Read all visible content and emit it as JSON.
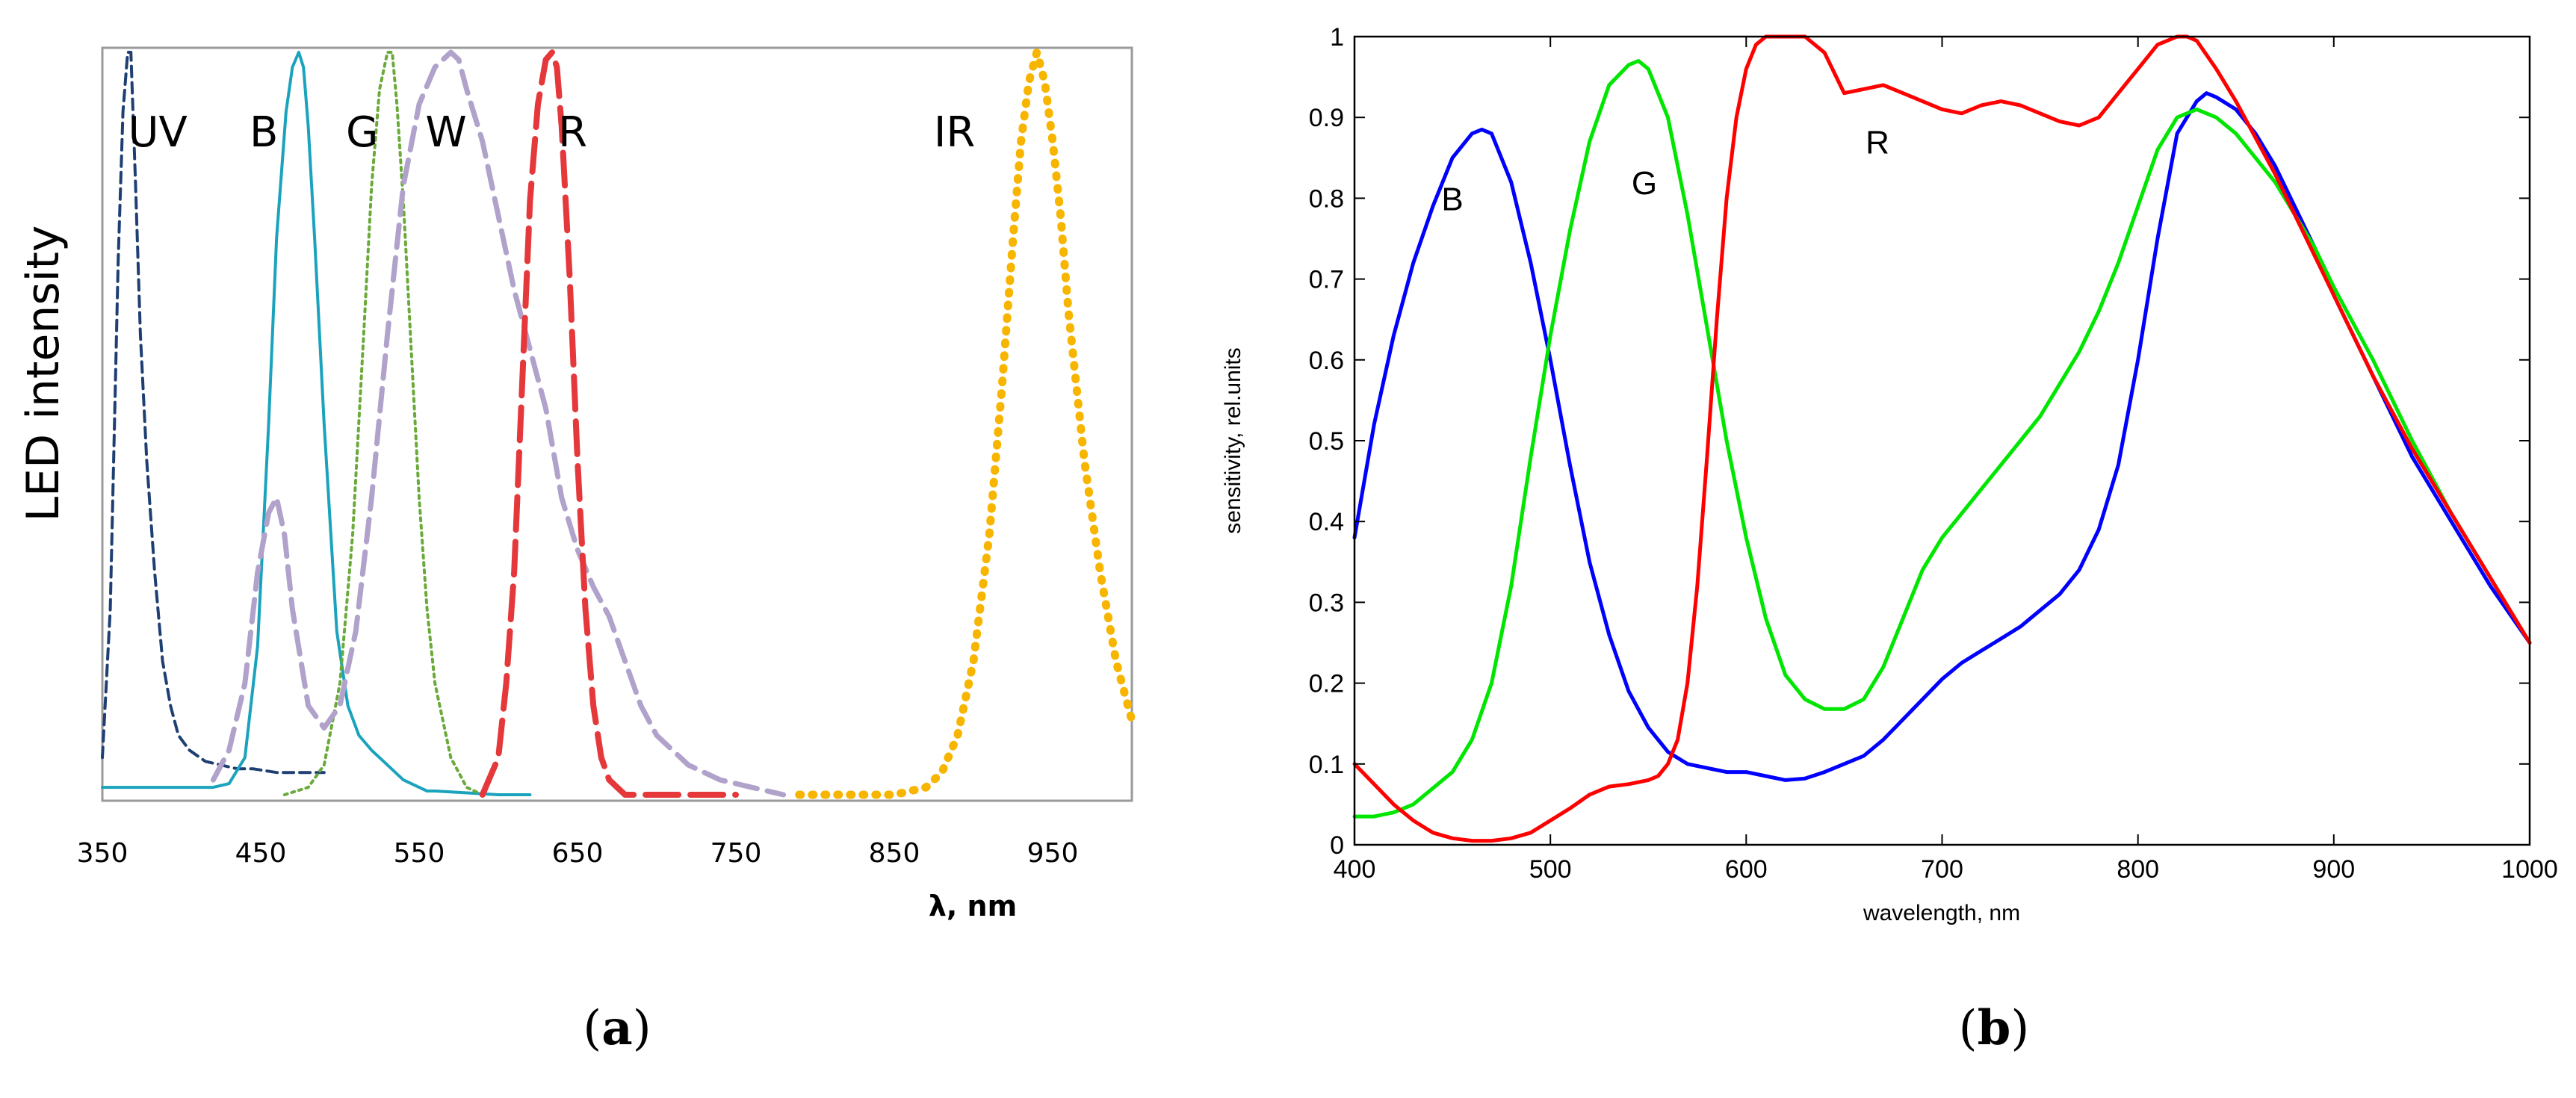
{
  "chart_data": [
    {
      "type": "line",
      "panel_label": "(a)",
      "caption_open": "(",
      "caption_letter": "a",
      "caption_close": ")",
      "ylabel": "LED intensity",
      "xlabel": "λ, nm",
      "xlim": [
        350,
        1000
      ],
      "ylim": [
        0,
        1
      ],
      "grid": false,
      "xticks": [
        350,
        450,
        550,
        650,
        750,
        850,
        950
      ],
      "band_labels": [
        {
          "text": "UV",
          "x": 385
        },
        {
          "text": "B",
          "x": 452
        },
        {
          "text": "G",
          "x": 514
        },
        {
          "text": "W",
          "x": 567
        },
        {
          "text": "R",
          "x": 647
        },
        {
          "text": "IR",
          "x": 888
        }
      ],
      "series": [
        {
          "name": "UV",
          "color": "#1f3f73",
          "dash": "14 8",
          "width": 4,
          "x": [
            350,
            355,
            360,
            363,
            366,
            368,
            371,
            374,
            378,
            383,
            388,
            393,
            398,
            405,
            415,
            425,
            435,
            445,
            460,
            470,
            480,
            490
          ],
          "y": [
            0.05,
            0.25,
            0.72,
            0.92,
            1.0,
            1.0,
            0.82,
            0.62,
            0.45,
            0.3,
            0.18,
            0.12,
            0.08,
            0.06,
            0.045,
            0.04,
            0.035,
            0.035,
            0.03,
            0.03,
            0.03,
            0.03
          ]
        },
        {
          "name": "B",
          "color": "#1ba3bd",
          "dash": "",
          "width": 4,
          "x": [
            350,
            380,
            400,
            420,
            430,
            440,
            448,
            455,
            460,
            466,
            470,
            474,
            477,
            480,
            484,
            490,
            498,
            505,
            512,
            520,
            530,
            540,
            550,
            555,
            560,
            600,
            620
          ],
          "y": [
            0.01,
            0.01,
            0.01,
            0.01,
            0.015,
            0.05,
            0.2,
            0.5,
            0.75,
            0.92,
            0.98,
            1.0,
            0.98,
            0.9,
            0.75,
            0.5,
            0.22,
            0.12,
            0.08,
            0.06,
            0.04,
            0.02,
            0.01,
            0.005,
            0.005,
            0.0,
            0.0
          ]
        },
        {
          "name": "G",
          "color": "#6aaa3a",
          "dash": "4 6",
          "width": 4,
          "x": [
            465,
            480,
            490,
            500,
            508,
            515,
            520,
            525,
            530,
            533,
            536,
            540,
            545,
            550,
            555,
            560,
            570,
            580,
            590
          ],
          "y": [
            0.0,
            0.01,
            0.04,
            0.15,
            0.35,
            0.62,
            0.82,
            0.95,
            1.0,
            1.0,
            0.93,
            0.8,
            0.6,
            0.4,
            0.25,
            0.15,
            0.05,
            0.01,
            0.0
          ]
        },
        {
          "name": "W",
          "color": "#b0a2ca",
          "dash": "30 14",
          "width": 7,
          "x": [
            420,
            430,
            440,
            448,
            455,
            460,
            465,
            470,
            480,
            490,
            500,
            510,
            520,
            530,
            540,
            550,
            560,
            570,
            575,
            580,
            590,
            600,
            610,
            620,
            630,
            640,
            650,
            660,
            670,
            680,
            690,
            700,
            720,
            740,
            760,
            780
          ],
          "y": [
            0.02,
            0.06,
            0.15,
            0.3,
            0.38,
            0.4,
            0.35,
            0.25,
            0.12,
            0.09,
            0.12,
            0.22,
            0.4,
            0.62,
            0.82,
            0.93,
            0.98,
            1.0,
            0.99,
            0.95,
            0.88,
            0.78,
            0.68,
            0.6,
            0.52,
            0.4,
            0.33,
            0.28,
            0.24,
            0.18,
            0.12,
            0.08,
            0.04,
            0.02,
            0.01,
            0.0
          ]
        },
        {
          "name": "R",
          "color": "#e5383b",
          "dash": "44 16",
          "width": 8,
          "x": [
            590,
            600,
            605,
            610,
            615,
            620,
            625,
            630,
            634,
            637,
            640,
            645,
            650,
            655,
            660,
            665,
            670,
            680,
            700,
            750
          ],
          "y": [
            0.0,
            0.05,
            0.15,
            0.3,
            0.55,
            0.8,
            0.93,
            0.99,
            1.0,
            0.98,
            0.9,
            0.7,
            0.45,
            0.25,
            0.12,
            0.05,
            0.02,
            0.0,
            0.0,
            0.0
          ]
        },
        {
          "name": "IR",
          "color": "#f7b500",
          "dash": "2 15",
          "width": 11,
          "x": [
            790,
            820,
            850,
            870,
            880,
            890,
            900,
            910,
            918,
            925,
            930,
            935,
            940,
            945,
            950,
            955,
            960,
            970,
            980,
            990,
            1000
          ],
          "y": [
            0.0,
            0.0,
            0.0,
            0.01,
            0.03,
            0.08,
            0.18,
            0.35,
            0.55,
            0.75,
            0.88,
            0.96,
            1.0,
            0.96,
            0.88,
            0.78,
            0.65,
            0.45,
            0.3,
            0.18,
            0.1
          ]
        }
      ]
    },
    {
      "type": "line",
      "panel_label": "(b)",
      "caption_open": "(",
      "caption_letter": "b",
      "caption_close": ")",
      "xlabel": "wavelength, nm",
      "ylabel": "sensitivity, rel.units",
      "xlim": [
        400,
        1000
      ],
      "ylim": [
        0,
        1
      ],
      "grid": false,
      "xticks": [
        400,
        500,
        600,
        700,
        800,
        900,
        1000
      ],
      "yticks": [
        0,
        0.1,
        0.2,
        0.3,
        0.4,
        0.5,
        0.6,
        0.7,
        0.8,
        0.9,
        1
      ],
      "ytick_labels": [
        "0",
        "0.1",
        "0.2",
        "0.3",
        "0.4",
        "0.5",
        "0.6",
        "0.7",
        "0.8",
        "0.9",
        "1"
      ],
      "curve_labels": [
        {
          "text": "B",
          "x": 450,
          "y": 0.8
        },
        {
          "text": "G",
          "x": 548,
          "y": 0.82
        },
        {
          "text": "R",
          "x": 667,
          "y": 0.87
        }
      ],
      "series": [
        {
          "name": "B",
          "color": "#0000ff",
          "x": [
            400,
            410,
            420,
            430,
            440,
            450,
            460,
            465,
            470,
            480,
            490,
            500,
            510,
            520,
            530,
            540,
            550,
            560,
            570,
            580,
            590,
            600,
            610,
            620,
            630,
            640,
            650,
            660,
            670,
            680,
            690,
            700,
            710,
            720,
            730,
            740,
            750,
            760,
            770,
            780,
            790,
            800,
            810,
            820,
            830,
            835,
            840,
            850,
            860,
            870,
            880,
            890,
            900,
            920,
            940,
            960,
            980,
            1000
          ],
          "y": [
            0.38,
            0.52,
            0.63,
            0.72,
            0.79,
            0.85,
            0.88,
            0.885,
            0.88,
            0.82,
            0.72,
            0.6,
            0.47,
            0.35,
            0.26,
            0.19,
            0.145,
            0.115,
            0.1,
            0.095,
            0.09,
            0.09,
            0.085,
            0.08,
            0.082,
            0.09,
            0.1,
            0.11,
            0.13,
            0.155,
            0.18,
            0.205,
            0.225,
            0.24,
            0.255,
            0.27,
            0.29,
            0.31,
            0.34,
            0.39,
            0.47,
            0.6,
            0.75,
            0.88,
            0.92,
            0.93,
            0.925,
            0.91,
            0.88,
            0.84,
            0.79,
            0.74,
            0.68,
            0.58,
            0.48,
            0.4,
            0.32,
            0.25
          ]
        },
        {
          "name": "G",
          "color": "#00e600",
          "x": [
            400,
            410,
            420,
            430,
            440,
            450,
            460,
            470,
            480,
            490,
            500,
            510,
            520,
            530,
            540,
            545,
            550,
            560,
            570,
            580,
            590,
            600,
            610,
            620,
            630,
            640,
            650,
            660,
            670,
            680,
            690,
            700,
            710,
            720,
            730,
            740,
            750,
            760,
            770,
            780,
            790,
            800,
            810,
            820,
            830,
            840,
            850,
            860,
            870,
            880,
            890,
            900,
            920,
            940,
            960,
            980,
            1000
          ],
          "y": [
            0.035,
            0.035,
            0.04,
            0.05,
            0.07,
            0.09,
            0.13,
            0.2,
            0.32,
            0.48,
            0.63,
            0.76,
            0.87,
            0.94,
            0.965,
            0.97,
            0.96,
            0.9,
            0.78,
            0.64,
            0.5,
            0.38,
            0.28,
            0.21,
            0.18,
            0.168,
            0.168,
            0.18,
            0.22,
            0.28,
            0.34,
            0.38,
            0.41,
            0.44,
            0.47,
            0.5,
            0.53,
            0.57,
            0.61,
            0.66,
            0.72,
            0.79,
            0.86,
            0.9,
            0.91,
            0.9,
            0.88,
            0.85,
            0.82,
            0.78,
            0.74,
            0.69,
            0.6,
            0.5,
            0.41,
            0.33,
            0.25
          ]
        },
        {
          "name": "R",
          "color": "#ff0000",
          "x": [
            400,
            410,
            420,
            430,
            440,
            450,
            460,
            470,
            480,
            490,
            500,
            510,
            520,
            530,
            540,
            550,
            555,
            560,
            565,
            570,
            575,
            580,
            585,
            590,
            595,
            600,
            605,
            610,
            620,
            630,
            640,
            650,
            660,
            670,
            680,
            690,
            700,
            710,
            720,
            730,
            740,
            750,
            760,
            770,
            780,
            790,
            800,
            810,
            820,
            825,
            830,
            840,
            850,
            860,
            870,
            880,
            890,
            900,
            920,
            940,
            960,
            980,
            1000
          ],
          "y": [
            0.1,
            0.075,
            0.05,
            0.03,
            0.015,
            0.008,
            0.005,
            0.005,
            0.008,
            0.015,
            0.03,
            0.045,
            0.062,
            0.072,
            0.075,
            0.08,
            0.085,
            0.1,
            0.13,
            0.2,
            0.32,
            0.48,
            0.65,
            0.8,
            0.9,
            0.96,
            0.99,
            1.0,
            1.0,
            1.0,
            0.98,
            0.93,
            0.935,
            0.94,
            0.93,
            0.92,
            0.91,
            0.905,
            0.915,
            0.92,
            0.915,
            0.905,
            0.895,
            0.89,
            0.9,
            0.93,
            0.96,
            0.99,
            1.0,
            1.0,
            0.995,
            0.96,
            0.92,
            0.875,
            0.83,
            0.78,
            0.73,
            0.68,
            0.58,
            0.49,
            0.41,
            0.33,
            0.25
          ]
        }
      ]
    }
  ]
}
